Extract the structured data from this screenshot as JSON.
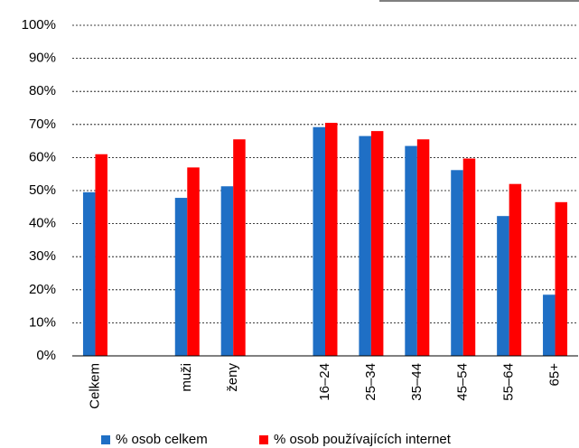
{
  "chart_data": {
    "type": "bar",
    "categories": [
      "Celkem",
      null,
      "muži",
      "ženy",
      null,
      "16–24",
      "25–34",
      "35–44",
      "45–54",
      "55–64",
      "65+"
    ],
    "series": [
      {
        "name": "% osob celkem",
        "color": "#1f6fc5",
        "values": [
          49.5,
          null,
          47.8,
          51.3,
          null,
          69.2,
          66.5,
          63.5,
          56.2,
          42.3,
          18.5
        ]
      },
      {
        "name": "% osob používajících internet",
        "color": "#ff0000",
        "values": [
          61,
          null,
          57,
          65.5,
          null,
          70.5,
          68,
          65.5,
          59.7,
          52,
          46.5
        ]
      }
    ],
    "ylim": [
      0,
      100
    ],
    "yticks": [
      {
        "value": 0,
        "label": "0%"
      },
      {
        "value": 10,
        "label": "10%"
      },
      {
        "value": 20,
        "label": "20%"
      },
      {
        "value": 30,
        "label": "30%"
      },
      {
        "value": 40,
        "label": "40%"
      },
      {
        "value": 50,
        "label": "50%"
      },
      {
        "value": 60,
        "label": "60%"
      },
      {
        "value": 70,
        "label": "70%"
      },
      {
        "value": 80,
        "label": "80%"
      },
      {
        "value": 90,
        "label": "90%"
      },
      {
        "value": 100,
        "label": "100%"
      }
    ],
    "grid": true,
    "legend": "bottom"
  }
}
